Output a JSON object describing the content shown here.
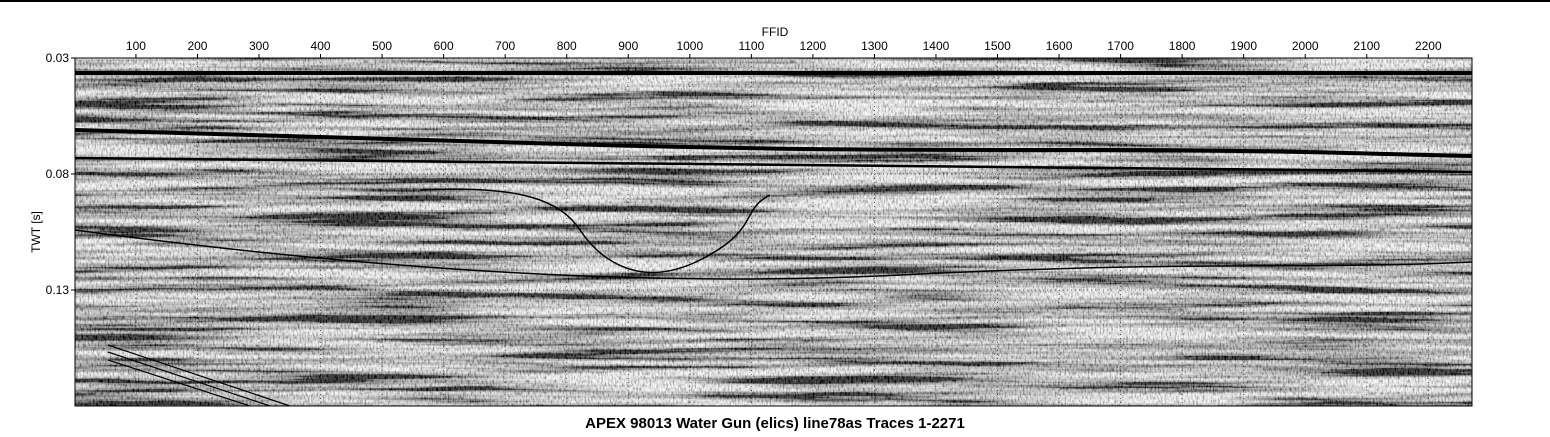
{
  "chart_data": {
    "type": "seismic",
    "title": "APEX 98013 Water Gun (elics) line78as Traces 1-2271",
    "x_label": "FFID",
    "y_label": "TWT [s]",
    "xlim": [
      1,
      2271
    ],
    "xticks": [
      100,
      200,
      300,
      400,
      500,
      600,
      700,
      800,
      900,
      1000,
      1100,
      1200,
      1300,
      1400,
      1500,
      1600,
      1700,
      1800,
      1900,
      2000,
      2100,
      2200
    ],
    "ylim": [
      0.03,
      0.18
    ],
    "yticks": [
      0.03,
      0.08,
      0.13
    ],
    "y_inverted": true,
    "grid": true
  }
}
